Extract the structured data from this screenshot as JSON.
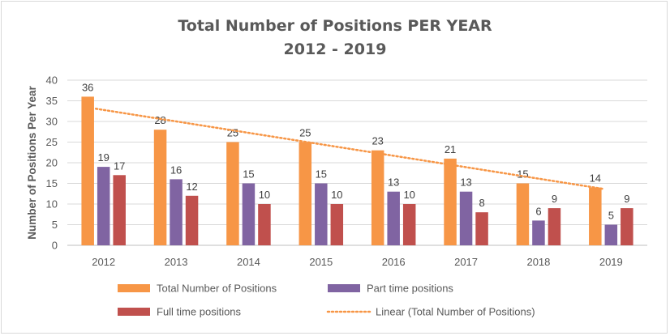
{
  "chart_data": {
    "type": "bar",
    "title_line1": "Total Number of Positions PER YEAR",
    "title_line2": "2012 - 2019",
    "ylabel": "Number of Positions Per Year",
    "ylim": [
      0,
      40
    ],
    "yticks": [
      "0",
      "5",
      "10",
      "15",
      "20",
      "25",
      "30",
      "35",
      "40"
    ],
    "categories": [
      "2012",
      "2013",
      "2014",
      "2015",
      "2016",
      "2017",
      "2018",
      "2019"
    ],
    "series": [
      {
        "name": "Total Number of Positions",
        "color": "#f79646",
        "values": [
          36,
          28,
          25,
          25,
          23,
          21,
          15,
          14
        ]
      },
      {
        "name": "Part time positions",
        "color": "#8064a2",
        "values": [
          19,
          16,
          15,
          15,
          13,
          13,
          6,
          5
        ]
      },
      {
        "name": "Full time positions",
        "color": "#c0504d",
        "values": [
          17,
          12,
          10,
          10,
          10,
          8,
          9,
          9
        ]
      }
    ],
    "trendline": {
      "name": "Linear (Total Number of Positions)",
      "color": "#f79646",
      "style": "dotted",
      "of_series": "Total Number of Positions"
    },
    "grid": true,
    "legend_position": "bottom"
  }
}
